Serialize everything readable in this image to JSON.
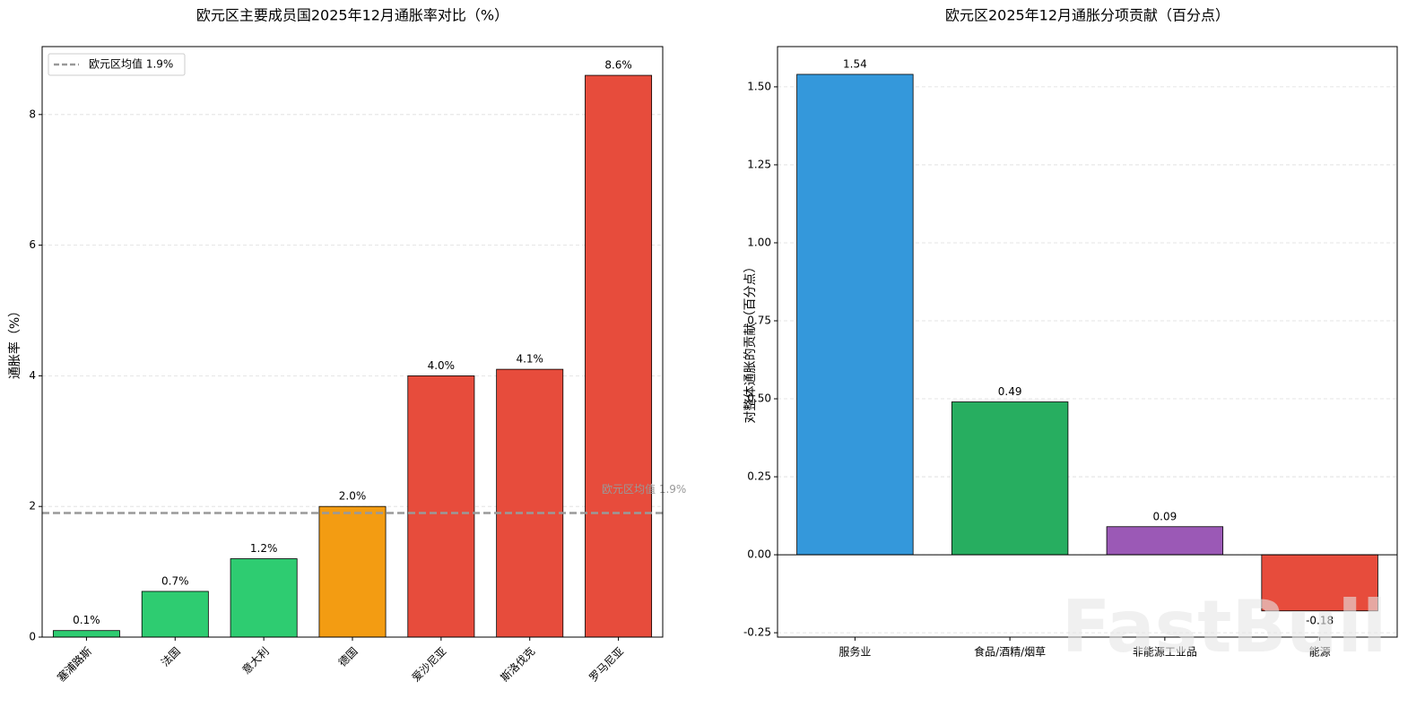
{
  "chart_data": [
    {
      "type": "bar",
      "title": "欧元区主要成员国2025年12月通胀率对比（%）",
      "y_label": "通胀率（%）",
      "categories": [
        "塞浦路斯",
        "法国",
        "意大利",
        "德国",
        "爱沙尼亚",
        "斯洛伐克",
        "罗马尼亚"
      ],
      "values": [
        0.1,
        0.7,
        1.2,
        2.0,
        4.0,
        4.1,
        8.6
      ],
      "value_labels": [
        "0.1%",
        "0.7%",
        "1.2%",
        "2.0%",
        "4.0%",
        "4.1%",
        "8.6%"
      ],
      "colors": [
        "#2ecc71",
        "#2ecc71",
        "#2ecc71",
        "#f39c12",
        "#e74c3c",
        "#e74c3c",
        "#e74c3c"
      ],
      "reference_line": {
        "value": 1.9,
        "label": "欧元区均值 1.9%",
        "color": "#999999"
      },
      "ylim": [
        0,
        9.04
      ],
      "yticks": [
        0,
        2,
        4,
        6,
        8
      ],
      "grid": true,
      "legend": "upper-left",
      "x_label_rotation": -45
    },
    {
      "type": "bar",
      "title": "欧元区2025年12月通胀分项贡献（百分点）",
      "y_label": "对整体通胀的贡献（百分点）",
      "categories": [
        "服务业",
        "食品/酒精/烟草",
        "非能源工业品",
        "能源"
      ],
      "values": [
        1.54,
        0.49,
        0.09,
        -0.18
      ],
      "colors": [
        "#3498db",
        "#27ae60",
        "#9b59b6",
        "#e74c3c"
      ],
      "zero_line": true,
      "ylim": [
        -0.264,
        1.629
      ],
      "yticks": [
        -0.25,
        {
          "value": 0,
          "label": "0.00"
        },
        0.25,
        {
          "value": 0.5,
          "label": "0.50"
        },
        0.75,
        {
          "value": 1,
          "label": "1.00"
        },
        1.25,
        {
          "value": 1.5,
          "label": "1.50"
        }
      ],
      "grid": true,
      "x_label_rotation": 0
    }
  ],
  "watermark": "FastBull"
}
